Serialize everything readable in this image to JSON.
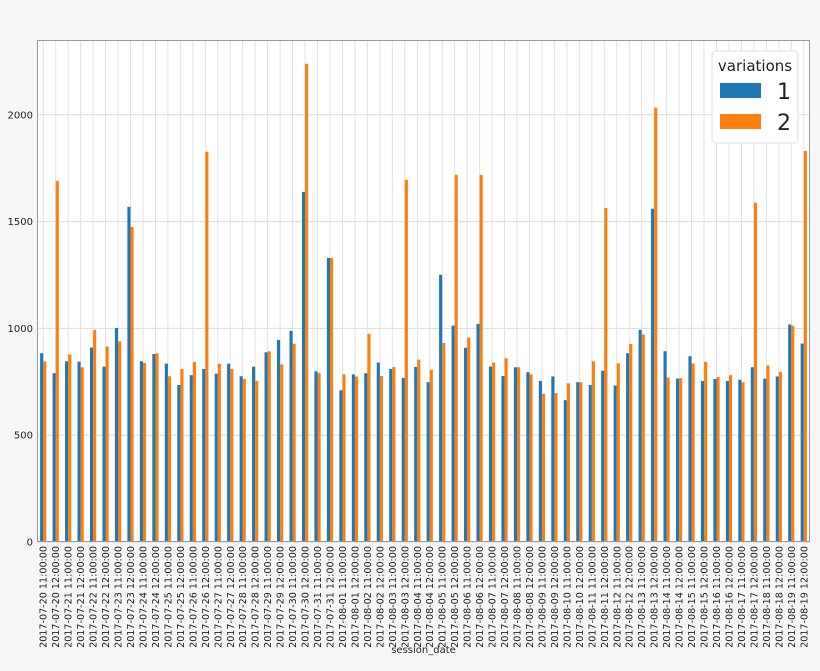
{
  "chart_data": {
    "type": "bar",
    "xlabel": "session_date",
    "ylabel": "",
    "ylim": [
      0,
      2350
    ],
    "yticks": [
      0,
      500,
      1000,
      1500,
      2000
    ],
    "grid": true,
    "legend": {
      "title": "variations",
      "placement": "top-right"
    },
    "categories": [
      "2017-07-20 11:00:00",
      "2017-07-20 12:00:00",
      "2017-07-21 11:00:00",
      "2017-07-21 12:00:00",
      "2017-07-22 11:00:00",
      "2017-07-22 12:00:00",
      "2017-07-23 11:00:00",
      "2017-07-23 12:00:00",
      "2017-07-24 11:00:00",
      "2017-07-24 12:00:00",
      "2017-07-25 11:00:00",
      "2017-07-25 12:00:00",
      "2017-07-26 11:00:00",
      "2017-07-26 12:00:00",
      "2017-07-27 11:00:00",
      "2017-07-27 12:00:00",
      "2017-07-28 11:00:00",
      "2017-07-28 12:00:00",
      "2017-07-29 11:00:00",
      "2017-07-29 12:00:00",
      "2017-07-30 11:00:00",
      "2017-07-30 12:00:00",
      "2017-07-31 11:00:00",
      "2017-07-31 12:00:00",
      "2017-08-01 11:00:00",
      "2017-08-01 12:00:00",
      "2017-08-02 11:00:00",
      "2017-08-02 12:00:00",
      "2017-08-03 11:00:00",
      "2017-08-03 12:00:00",
      "2017-08-04 11:00:00",
      "2017-08-04 12:00:00",
      "2017-08-05 11:00:00",
      "2017-08-05 12:00:00",
      "2017-08-06 11:00:00",
      "2017-08-06 12:00:00",
      "2017-08-07 11:00:00",
      "2017-08-07 12:00:00",
      "2017-08-08 11:00:00",
      "2017-08-08 12:00:00",
      "2017-08-09 11:00:00",
      "2017-08-09 12:00:00",
      "2017-08-10 11:00:00",
      "2017-08-10 12:00:00",
      "2017-08-11 11:00:00",
      "2017-08-11 12:00:00",
      "2017-08-12 11:00:00",
      "2017-08-12 12:00:00",
      "2017-08-13 11:00:00",
      "2017-08-13 12:00:00",
      "2017-08-14 11:00:00",
      "2017-08-14 12:00:00",
      "2017-08-15 11:00:00",
      "2017-08-15 12:00:00",
      "2017-08-16 11:00:00",
      "2017-08-16 12:00:00",
      "2017-08-17 11:00:00",
      "2017-08-17 12:00:00",
      "2017-08-18 11:00:00",
      "2017-08-18 12:00:00",
      "2017-08-19 11:00:00",
      "2017-08-19 12:00:00"
    ],
    "series": [
      {
        "name": "1",
        "color": "#1f77b4",
        "values": [
          884,
          790,
          846,
          844,
          910,
          821,
          1002,
          1569,
          846,
          880,
          835,
          735,
          781,
          810,
          788,
          835,
          776,
          821,
          888,
          946,
          988,
          1639,
          799,
          1330,
          710,
          785,
          790,
          840,
          810,
          768,
          819,
          748,
          1251,
          1013,
          909,
          1021,
          821,
          777,
          818,
          795,
          754,
          775,
          664,
          748,
          735,
          802,
          733,
          884,
          993,
          1560,
          893,
          765,
          870,
          754,
          763,
          754,
          760,
          818,
          765,
          775,
          1018,
          929
        ]
      },
      {
        "name": "2",
        "color": "#ff7f0e",
        "values": [
          846,
          1691,
          878,
          818,
          993,
          915,
          939,
          1475,
          838,
          884,
          776,
          810,
          843,
          1827,
          834,
          810,
          763,
          754,
          893,
          831,
          928,
          2239,
          791,
          1330,
          785,
          775,
          974,
          777,
          819,
          1696,
          854,
          806,
          932,
          1719,
          957,
          1719,
          840,
          860,
          818,
          785,
          693,
          697,
          743,
          748,
          846,
          1564,
          836,
          927,
          971,
          2033,
          770,
          767,
          836,
          843,
          773,
          781,
          748,
          1588,
          826,
          797,
          1012,
          1831
        ]
      }
    ]
  }
}
